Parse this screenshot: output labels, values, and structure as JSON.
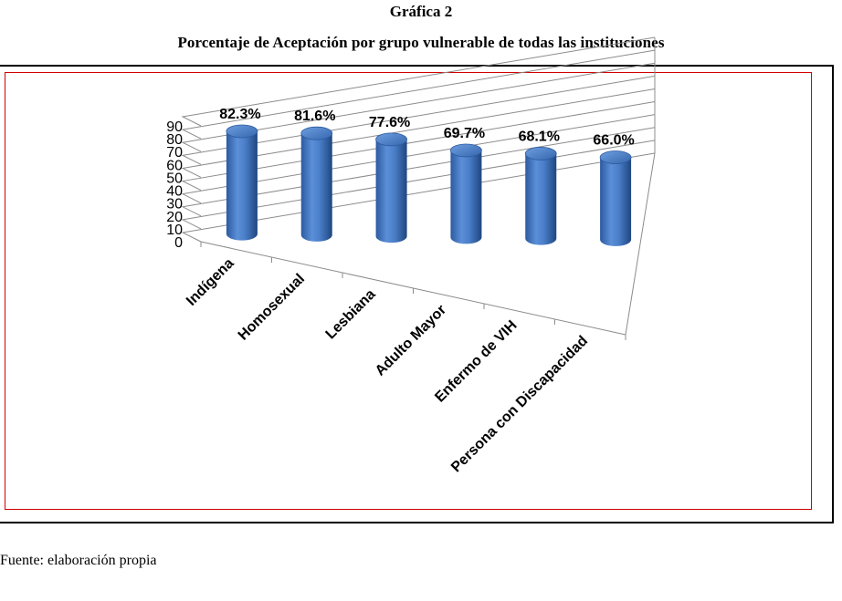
{
  "figure": {
    "number_title": "Gráfica 2",
    "title": "Porcentaje de Aceptación por grupo vulnerable de todas las instituciones",
    "source": "Fuente: elaboración propia"
  },
  "chart_data": {
    "type": "bar",
    "style": "3d-cylinder",
    "categories": [
      "Indígena",
      "Homosexual",
      "Lesbiana",
      "Adulto Mayor",
      "Enfermo de VIH",
      "Persona con Discapacidad"
    ],
    "values": [
      82.3,
      81.6,
      77.6,
      69.7,
      68.1,
      66.0
    ],
    "data_labels": [
      "82.3%",
      "81.6%",
      "77.6%",
      "69.7%",
      "68.1%",
      "66.0%"
    ],
    "yticks": [
      0,
      10,
      20,
      30,
      40,
      50,
      60,
      70,
      80,
      90
    ],
    "ylim": [
      0,
      90
    ],
    "grid": true,
    "bar_color": "#4a7ec8",
    "frame_color": "#d00000"
  }
}
